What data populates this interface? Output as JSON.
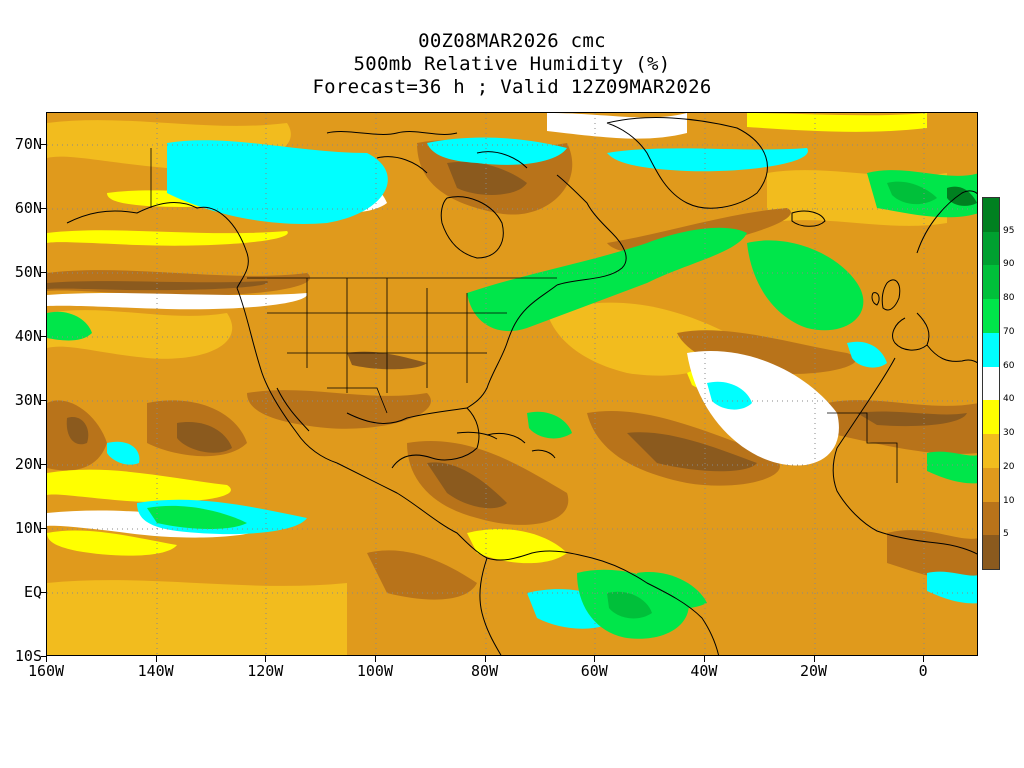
{
  "title": {
    "line1": "00Z08MAR2026 cmc",
    "line2": "500mb Relative Humidity (%)",
    "line3": "Forecast=36 h ; Valid 12Z09MAR2026"
  },
  "map": {
    "lon_range": [
      -160,
      10
    ],
    "lat_range": [
      -10,
      75
    ],
    "lat_labels": [
      {
        "lat": 70,
        "text": "70N"
      },
      {
        "lat": 60,
        "text": "60N"
      },
      {
        "lat": 50,
        "text": "50N"
      },
      {
        "lat": 40,
        "text": "40N"
      },
      {
        "lat": 30,
        "text": "30N"
      },
      {
        "lat": 20,
        "text": "20N"
      },
      {
        "lat": 10,
        "text": "10N"
      },
      {
        "lat": 0,
        "text": "EQ"
      },
      {
        "lat": -10,
        "text": "10S"
      }
    ],
    "lon_labels": [
      {
        "lon": -160,
        "text": "160W"
      },
      {
        "lon": -140,
        "text": "140W"
      },
      {
        "lon": -120,
        "text": "120W"
      },
      {
        "lon": -100,
        "text": "100W"
      },
      {
        "lon": -80,
        "text": "80W"
      },
      {
        "lon": -60,
        "text": "60W"
      },
      {
        "lon": -40,
        "text": "40W"
      },
      {
        "lon": -20,
        "text": "20W"
      },
      {
        "lon": 0,
        "text": "0"
      }
    ]
  },
  "colors": {
    "rh_lt5": "#8b5a1e",
    "rh_5_10": "#b8731a",
    "rh_10_20": "#e09a1c",
    "rh_20_30": "#f2bc1e",
    "rh_30_40": "#ffff00",
    "rh_40_60": "#ffffff",
    "rh_60_70": "#00ffff",
    "rh_70_80": "#00e64a",
    "rh_80_90": "#00c03a",
    "rh_90_95": "#00a030",
    "rh_gt95": "#008020"
  },
  "colorbar": {
    "labels": [
      "95",
      "90",
      "80",
      "70",
      "60",
      "40",
      "30",
      "20",
      "10",
      "5"
    ],
    "segments": [
      "#008020",
      "#00a030",
      "#00c03a",
      "#00e64a",
      "#00ffff",
      "#ffffff",
      "#ffff00",
      "#f2bc1e",
      "#e09a1c",
      "#b8731a",
      "#8b5a1e"
    ]
  }
}
